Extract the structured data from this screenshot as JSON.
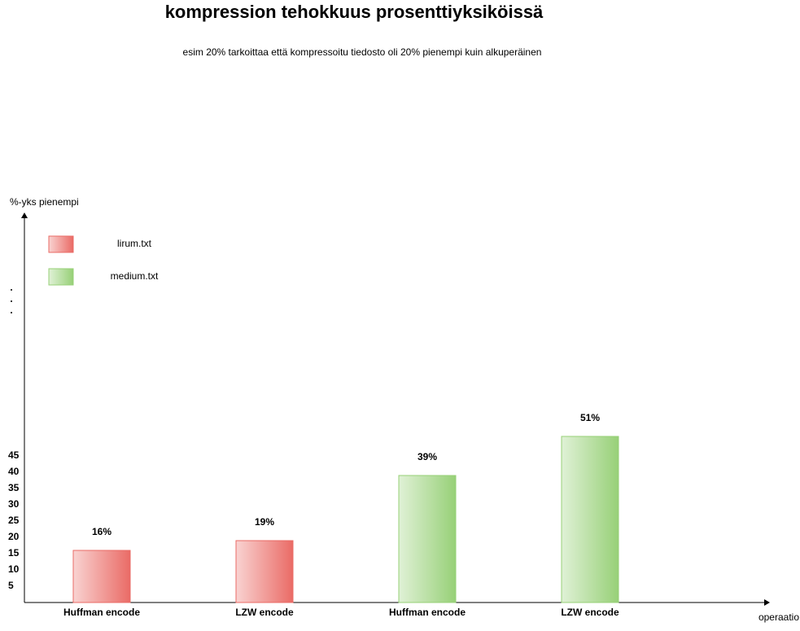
{
  "chart_data": {
    "type": "bar",
    "title": "kompression tehokkuus prosenttiyksiköissä",
    "subtitle": "esim 20% tarkoittaa että kompressoitu tiedosto oli 20% pienempi kuin alkuperäinen",
    "y_label": "%-yks pienempi",
    "x_label": "operaatio",
    "categories": [
      "Huffman encode",
      "LZW encode",
      "Huffman encode",
      "LZW encode"
    ],
    "series": [
      {
        "name": "lirum.txt",
        "color": "#ea6b66",
        "values": [
          16,
          19,
          null,
          null
        ],
        "value_labels": [
          "16%",
          "19%",
          null,
          null
        ]
      },
      {
        "name": "medium.txt",
        "color": "#97d077",
        "values": [
          null,
          null,
          39,
          51
        ],
        "value_labels": [
          null,
          null,
          "39%",
          "51%"
        ]
      }
    ],
    "ylim": [
      0,
      120
    ],
    "yticks": [
      5,
      10,
      15,
      20,
      25,
      30,
      35,
      40,
      45
    ],
    "grid": false,
    "legend": "top-left"
  }
}
